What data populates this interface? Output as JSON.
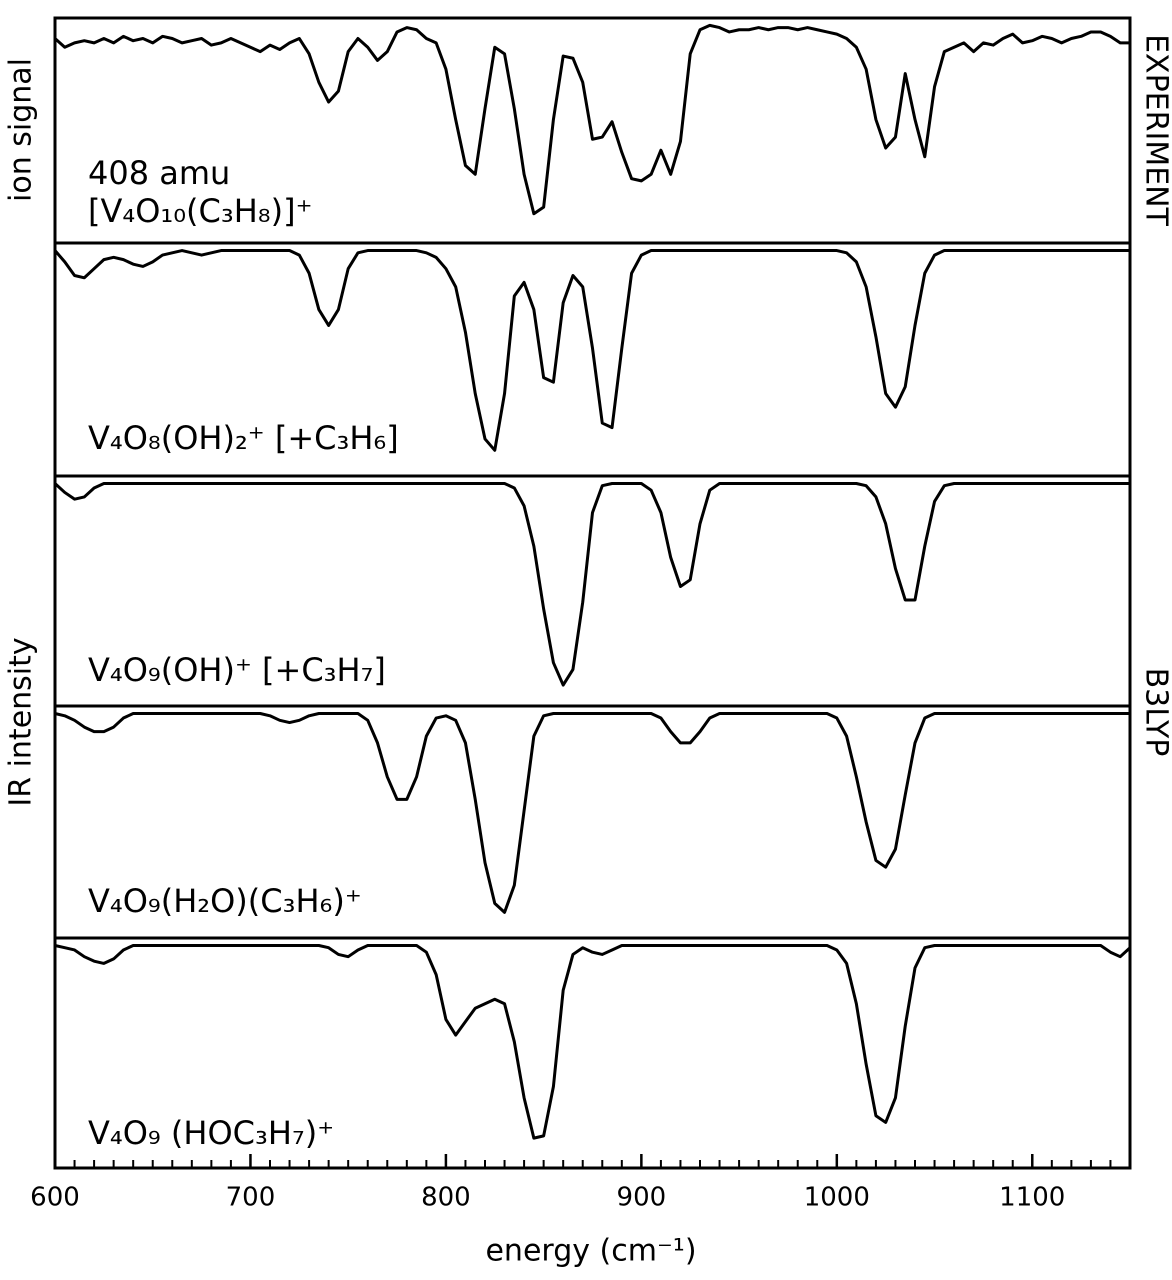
{
  "chart_data": {
    "type": "line",
    "x_label": "energy (cm⁻¹)",
    "y_labels": [
      "ion signal",
      "IR intensity"
    ],
    "right_labels": [
      "EXPERIMENT",
      "B3LYP"
    ],
    "annotation": "408 amu",
    "xlim": [
      600,
      1150
    ],
    "ylim": [
      0,
      1
    ],
    "xticks": [
      600,
      700,
      800,
      900,
      1000,
      1100
    ],
    "xminorticks": [
      610,
      620,
      630,
      640,
      650,
      660,
      670,
      680,
      690,
      710,
      720,
      730,
      740,
      750,
      760,
      770,
      780,
      790,
      810,
      820,
      830,
      840,
      850,
      860,
      870,
      880,
      890,
      910,
      920,
      930,
      940,
      950,
      960,
      970,
      980,
      990,
      1010,
      1020,
      1030,
      1040,
      1050,
      1060,
      1070,
      1080,
      1090,
      1110,
      1120,
      1130,
      1140,
      1150
    ],
    "x": [
      600,
      605,
      610,
      615,
      620,
      625,
      630,
      635,
      640,
      645,
      650,
      655,
      660,
      665,
      670,
      675,
      680,
      685,
      690,
      695,
      700,
      705,
      710,
      715,
      720,
      725,
      730,
      735,
      740,
      745,
      750,
      755,
      760,
      765,
      770,
      775,
      780,
      785,
      790,
      795,
      800,
      805,
      810,
      815,
      820,
      825,
      830,
      835,
      840,
      845,
      850,
      855,
      860,
      865,
      870,
      875,
      880,
      885,
      890,
      895,
      900,
      905,
      910,
      915,
      920,
      925,
      930,
      935,
      940,
      945,
      950,
      955,
      960,
      965,
      970,
      975,
      980,
      985,
      990,
      995,
      1000,
      1005,
      1010,
      1015,
      1020,
      1025,
      1030,
      1035,
      1040,
      1045,
      1050,
      1055,
      1060,
      1065,
      1070,
      1075,
      1080,
      1085,
      1090,
      1095,
      1100,
      1105,
      1110,
      1115,
      1120,
      1125,
      1130,
      1135,
      1140,
      1145,
      1150
    ],
    "series": [
      {
        "name": "[V₄O₁₀(C₃H₈)]⁺",
        "color": "#000000",
        "values": [
          0.92,
          0.88,
          0.9,
          0.91,
          0.9,
          0.92,
          0.9,
          0.93,
          0.91,
          0.92,
          0.9,
          0.93,
          0.92,
          0.9,
          0.91,
          0.92,
          0.89,
          0.9,
          0.92,
          0.9,
          0.88,
          0.86,
          0.89,
          0.87,
          0.9,
          0.92,
          0.85,
          0.72,
          0.63,
          0.68,
          0.86,
          0.92,
          0.88,
          0.82,
          0.86,
          0.95,
          0.97,
          0.96,
          0.92,
          0.9,
          0.78,
          0.55,
          0.34,
          0.3,
          0.6,
          0.88,
          0.85,
          0.6,
          0.3,
          0.12,
          0.15,
          0.55,
          0.84,
          0.83,
          0.72,
          0.46,
          0.47,
          0.54,
          0.4,
          0.28,
          0.27,
          0.3,
          0.41,
          0.3,
          0.45,
          0.85,
          0.96,
          0.98,
          0.97,
          0.95,
          0.96,
          0.96,
          0.97,
          0.96,
          0.97,
          0.97,
          0.96,
          0.97,
          0.96,
          0.95,
          0.94,
          0.92,
          0.88,
          0.78,
          0.55,
          0.42,
          0.47,
          0.76,
          0.55,
          0.38,
          0.7,
          0.86,
          0.88,
          0.9,
          0.86,
          0.9,
          0.89,
          0.92,
          0.94,
          0.9,
          0.91,
          0.93,
          0.92,
          0.9,
          0.92,
          0.93,
          0.95,
          0.95,
          0.93,
          0.9,
          0.9
        ]
      },
      {
        "name": "V₄O₈(OH)₂⁺ [+C₃H₆]",
        "color": "#000000",
        "values": [
          0.98,
          0.93,
          0.87,
          0.86,
          0.9,
          0.94,
          0.95,
          0.94,
          0.92,
          0.91,
          0.93,
          0.96,
          0.97,
          0.98,
          0.97,
          0.96,
          0.97,
          0.98,
          0.98,
          0.98,
          0.98,
          0.98,
          0.98,
          0.98,
          0.98,
          0.96,
          0.88,
          0.72,
          0.65,
          0.72,
          0.9,
          0.97,
          0.98,
          0.98,
          0.98,
          0.98,
          0.98,
          0.98,
          0.97,
          0.95,
          0.9,
          0.82,
          0.62,
          0.35,
          0.15,
          0.1,
          0.35,
          0.78,
          0.84,
          0.72,
          0.42,
          0.4,
          0.75,
          0.87,
          0.82,
          0.55,
          0.22,
          0.2,
          0.55,
          0.88,
          0.96,
          0.98,
          0.98,
          0.98,
          0.98,
          0.98,
          0.98,
          0.98,
          0.98,
          0.98,
          0.98,
          0.98,
          0.98,
          0.98,
          0.98,
          0.98,
          0.98,
          0.98,
          0.98,
          0.98,
          0.98,
          0.97,
          0.93,
          0.82,
          0.6,
          0.35,
          0.29,
          0.38,
          0.65,
          0.88,
          0.96,
          0.98,
          0.98,
          0.98,
          0.98,
          0.98,
          0.98,
          0.98,
          0.98,
          0.98,
          0.98,
          0.98,
          0.98,
          0.98,
          0.98,
          0.98,
          0.98,
          0.98,
          0.98,
          0.98,
          0.98
        ]
      },
      {
        "name": "V₄O₉(OH)⁺ [+C₃H₇]",
        "color": "#000000",
        "values": [
          0.98,
          0.94,
          0.91,
          0.92,
          0.96,
          0.98,
          0.98,
          0.98,
          0.98,
          0.98,
          0.98,
          0.98,
          0.98,
          0.98,
          0.98,
          0.98,
          0.98,
          0.98,
          0.98,
          0.98,
          0.98,
          0.98,
          0.98,
          0.98,
          0.98,
          0.98,
          0.98,
          0.98,
          0.98,
          0.98,
          0.98,
          0.98,
          0.98,
          0.98,
          0.98,
          0.98,
          0.98,
          0.98,
          0.98,
          0.98,
          0.98,
          0.98,
          0.98,
          0.98,
          0.98,
          0.98,
          0.98,
          0.96,
          0.88,
          0.7,
          0.42,
          0.18,
          0.08,
          0.15,
          0.45,
          0.85,
          0.97,
          0.98,
          0.98,
          0.98,
          0.98,
          0.95,
          0.85,
          0.65,
          0.52,
          0.55,
          0.8,
          0.95,
          0.98,
          0.98,
          0.98,
          0.98,
          0.98,
          0.98,
          0.98,
          0.98,
          0.98,
          0.98,
          0.98,
          0.98,
          0.98,
          0.98,
          0.98,
          0.97,
          0.92,
          0.8,
          0.6,
          0.46,
          0.46,
          0.7,
          0.9,
          0.97,
          0.98,
          0.98,
          0.98,
          0.98,
          0.98,
          0.98,
          0.98,
          0.98,
          0.98,
          0.98,
          0.98,
          0.98,
          0.98,
          0.98,
          0.98,
          0.98,
          0.98,
          0.98,
          0.98
        ]
      },
      {
        "name": "V₄O₉(H₂O)(C₃H₆)⁺",
        "color": "#000000",
        "values": [
          0.98,
          0.97,
          0.95,
          0.92,
          0.9,
          0.9,
          0.92,
          0.96,
          0.98,
          0.98,
          0.98,
          0.98,
          0.98,
          0.98,
          0.98,
          0.98,
          0.98,
          0.98,
          0.98,
          0.98,
          0.98,
          0.98,
          0.97,
          0.95,
          0.94,
          0.95,
          0.97,
          0.98,
          0.98,
          0.98,
          0.98,
          0.98,
          0.95,
          0.85,
          0.7,
          0.6,
          0.6,
          0.7,
          0.88,
          0.96,
          0.97,
          0.95,
          0.85,
          0.6,
          0.32,
          0.14,
          0.1,
          0.22,
          0.55,
          0.88,
          0.97,
          0.98,
          0.98,
          0.98,
          0.98,
          0.98,
          0.98,
          0.98,
          0.98,
          0.98,
          0.98,
          0.98,
          0.96,
          0.9,
          0.85,
          0.85,
          0.9,
          0.96,
          0.98,
          0.98,
          0.98,
          0.98,
          0.98,
          0.98,
          0.98,
          0.98,
          0.98,
          0.98,
          0.98,
          0.98,
          0.96,
          0.88,
          0.7,
          0.5,
          0.33,
          0.3,
          0.38,
          0.62,
          0.85,
          0.96,
          0.98,
          0.98,
          0.98,
          0.98,
          0.98,
          0.98,
          0.98,
          0.98,
          0.98,
          0.98,
          0.98,
          0.98,
          0.98,
          0.98,
          0.98,
          0.98,
          0.98,
          0.98,
          0.98,
          0.98,
          0.98
        ]
      },
      {
        "name": "V₄O₉ (HOC₃H₇)⁺",
        "color": "#000000",
        "values": [
          0.98,
          0.97,
          0.96,
          0.93,
          0.91,
          0.9,
          0.92,
          0.96,
          0.98,
          0.98,
          0.98,
          0.98,
          0.98,
          0.98,
          0.98,
          0.98,
          0.98,
          0.98,
          0.98,
          0.98,
          0.98,
          0.98,
          0.98,
          0.98,
          0.98,
          0.98,
          0.98,
          0.98,
          0.97,
          0.94,
          0.93,
          0.96,
          0.98,
          0.98,
          0.98,
          0.98,
          0.98,
          0.98,
          0.95,
          0.85,
          0.65,
          0.58,
          0.64,
          0.7,
          0.72,
          0.74,
          0.72,
          0.55,
          0.3,
          0.12,
          0.13,
          0.35,
          0.78,
          0.94,
          0.97,
          0.95,
          0.94,
          0.96,
          0.98,
          0.98,
          0.98,
          0.98,
          0.98,
          0.98,
          0.98,
          0.98,
          0.98,
          0.98,
          0.98,
          0.98,
          0.98,
          0.98,
          0.98,
          0.98,
          0.98,
          0.98,
          0.98,
          0.98,
          0.98,
          0.98,
          0.96,
          0.9,
          0.72,
          0.45,
          0.22,
          0.19,
          0.3,
          0.62,
          0.88,
          0.97,
          0.98,
          0.98,
          0.98,
          0.98,
          0.98,
          0.98,
          0.98,
          0.98,
          0.98,
          0.98,
          0.98,
          0.98,
          0.98,
          0.98,
          0.98,
          0.98,
          0.98,
          0.98,
          0.95,
          0.93,
          0.97
        ]
      }
    ]
  }
}
